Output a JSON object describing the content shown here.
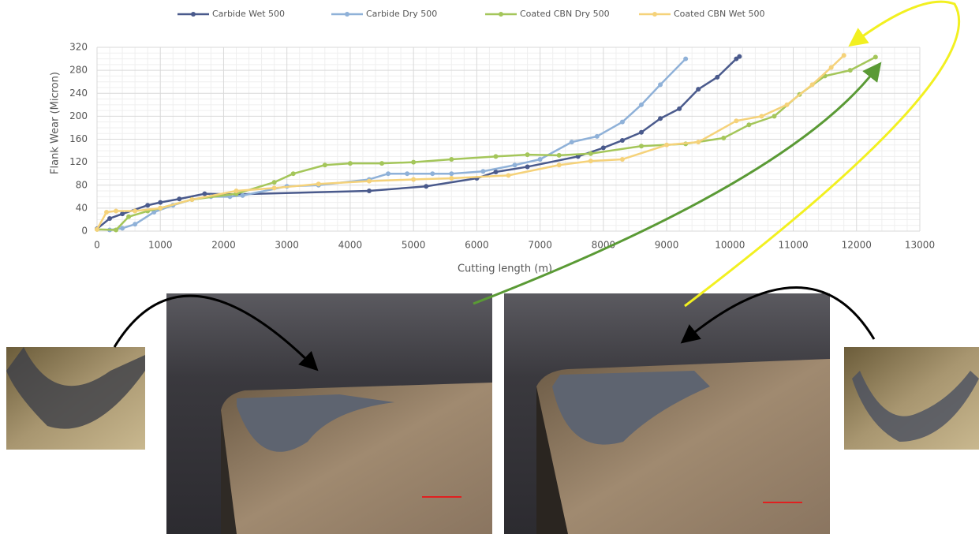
{
  "chart_data": {
    "type": "line",
    "x_label": "Cutting length (m)",
    "y_label": "Flank Wear (Micron)",
    "xlim": [
      0,
      13000
    ],
    "ylim": [
      0,
      320
    ],
    "xticks": [
      0,
      1000,
      2000,
      3000,
      4000,
      5000,
      6000,
      7000,
      8000,
      9000,
      10000,
      11000,
      12000,
      13000
    ],
    "yticks": [
      0,
      40,
      80,
      120,
      160,
      200,
      240,
      280,
      320
    ],
    "grid": true,
    "legend": "top",
    "series": [
      {
        "name": "Carbide Wet 500",
        "color": "#4a5a8c",
        "x": [
          0,
          200,
          400,
          800,
          1000,
          1300,
          1700,
          2200,
          4300,
          5200,
          6000,
          6300,
          6800,
          7600,
          8000,
          8300,
          8600,
          8900,
          9200,
          9500,
          9800,
          10100,
          10150
        ],
        "values": [
          4,
          22,
          30,
          45,
          50,
          56,
          65,
          64,
          70,
          78,
          92,
          103,
          112,
          130,
          145,
          158,
          172,
          196,
          213,
          247,
          268,
          300,
          304
        ]
      },
      {
        "name": "Carbide Dry 500",
        "color": "#8fb1d8",
        "x": [
          200,
          400,
          600,
          900,
          1200,
          1500,
          1800,
          2100,
          2300,
          3000,
          3500,
          4300,
          4600,
          4900,
          5300,
          5600,
          6100,
          6600,
          7000,
          7500,
          7900,
          8300,
          8600,
          8900,
          9300
        ],
        "values": [
          2,
          5,
          12,
          33,
          45,
          55,
          60,
          60,
          62,
          78,
          80,
          90,
          100,
          100,
          100,
          100,
          104,
          115,
          125,
          155,
          165,
          190,
          220,
          255,
          300
        ]
      },
      {
        "name": "Coated CBN Dry 500",
        "color": "#a4c65a",
        "x": [
          0,
          300,
          500,
          800,
          1000,
          1500,
          2200,
          2800,
          3100,
          3600,
          4000,
          4500,
          5000,
          5600,
          6300,
          6800,
          7300,
          7800,
          8600,
          9300,
          9900,
          10300,
          10700,
          11100,
          11500,
          11900,
          12300
        ],
        "values": [
          3,
          2,
          25,
          35,
          40,
          55,
          65,
          85,
          100,
          115,
          118,
          118,
          120,
          125,
          130,
          133,
          132,
          135,
          148,
          152,
          162,
          185,
          200,
          238,
          270,
          280,
          303
        ]
      },
      {
        "name": "Coated CBN Wet 500",
        "color": "#f5d27a",
        "x": [
          0,
          150,
          300,
          600,
          1000,
          1500,
          2200,
          2800,
          3500,
          4300,
          5000,
          5600,
          6500,
          7300,
          7800,
          8300,
          9000,
          9500,
          10100,
          10500,
          10900,
          11300,
          11600,
          11800
        ],
        "values": [
          3,
          33,
          35,
          35,
          40,
          55,
          70,
          75,
          82,
          87,
          90,
          92,
          97,
          115,
          122,
          125,
          150,
          155,
          192,
          200,
          220,
          255,
          285,
          306
        ]
      }
    ]
  }
}
